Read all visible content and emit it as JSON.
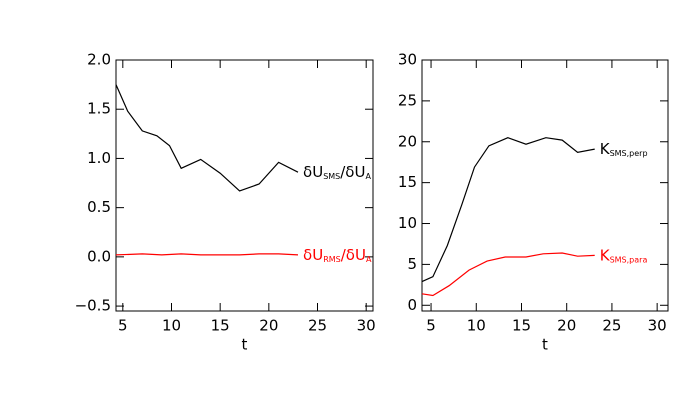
{
  "chart_data": [
    {
      "type": "line",
      "xlabel": "t",
      "xlim": [
        4.3,
        30.7
      ],
      "ylim": [
        -0.55,
        2.0
      ],
      "xticks": [
        5,
        10,
        15,
        20,
        25,
        30
      ],
      "yticks": [
        {
          "value": -0.5,
          "label": "−0.5"
        },
        {
          "value": 0,
          "label": "0.0"
        },
        {
          "value": 0.5,
          "label": "0.5"
        },
        {
          "value": 1,
          "label": "1.0"
        },
        {
          "value": 1.5,
          "label": "1.5"
        },
        {
          "value": 2,
          "label": "2.0"
        }
      ],
      "series": [
        {
          "label": [
            "δU",
            "SMS",
            "/δU",
            "A"
          ],
          "color": "#000000",
          "x": [
            4.3,
            5.5,
            7,
            8.5,
            9.8,
            11,
            13,
            15,
            17,
            19,
            21,
            23
          ],
          "values": [
            1.75,
            1.48,
            1.28,
            1.23,
            1.13,
            0.9,
            0.99,
            0.85,
            0.67,
            0.74,
            0.96,
            0.86
          ]
        },
        {
          "label": [
            "δU",
            "RMS",
            "/δU",
            "A"
          ],
          "color": "#ff0000",
          "x": [
            4.3,
            7,
            9,
            11,
            13,
            17,
            19,
            21,
            23
          ],
          "values": [
            0.02,
            0.03,
            0.02,
            0.03,
            0.02,
            0.02,
            0.03,
            0.03,
            0.02
          ]
        }
      ]
    },
    {
      "type": "line",
      "xlabel": "t",
      "xlim": [
        4,
        31.2
      ],
      "ylim": [
        -0.7,
        30
      ],
      "xticks": [
        5,
        10,
        15,
        20,
        25,
        30
      ],
      "yticks": [
        0,
        5,
        10,
        15,
        20,
        25,
        30
      ],
      "series": [
        {
          "label": [
            "K",
            "SMS,perp"
          ],
          "color": "#000000",
          "x": [
            4,
            5.2,
            6.8,
            8.4,
            9.8,
            11.4,
            13.5,
            15.5,
            17.7,
            19.5,
            21.2,
            23.1
          ],
          "values": [
            2.9,
            3.5,
            7.3,
            12.3,
            16.9,
            19.5,
            20.5,
            19.7,
            20.5,
            20.2,
            18.7,
            19.1
          ]
        },
        {
          "label": [
            "K",
            "SMS,para"
          ],
          "color": "#ff0000",
          "x": [
            4,
            5.2,
            7,
            9.2,
            11.2,
            13.2,
            15.5,
            17.4,
            19.5,
            21.2,
            23.1
          ],
          "values": [
            1.4,
            1.2,
            2.4,
            4.3,
            5.4,
            5.9,
            5.9,
            6.3,
            6.4,
            6.0,
            6.1
          ]
        }
      ]
    }
  ]
}
